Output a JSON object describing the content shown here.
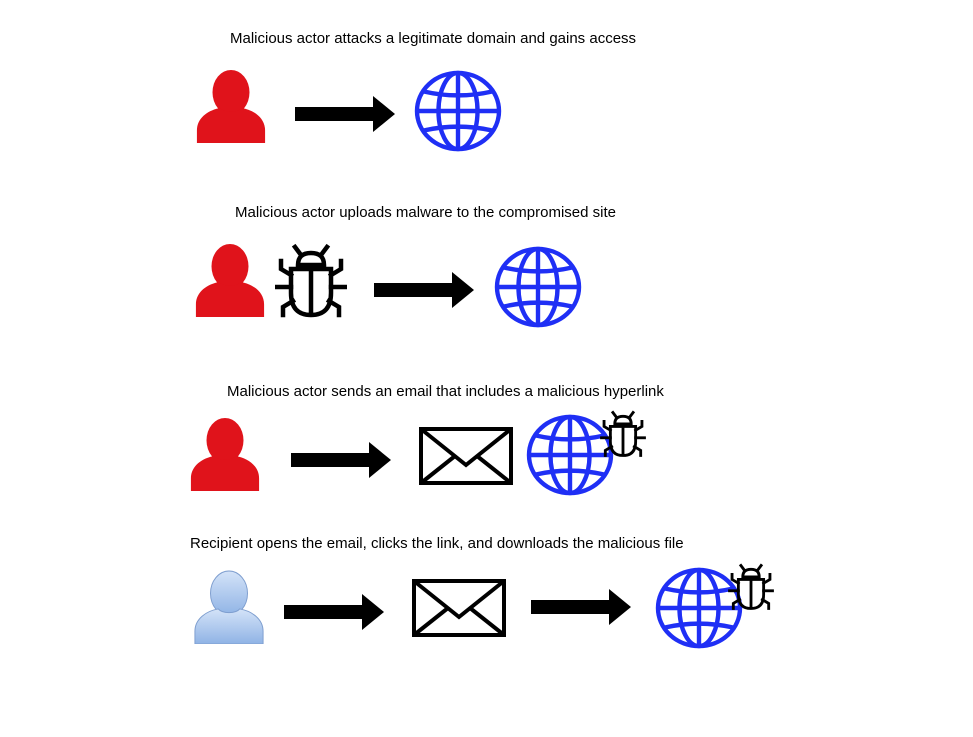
{
  "steps": [
    {
      "caption": "Malicious actor attacks a legitimate domain and gains access",
      "actor_icon": "person-icon",
      "actor_color": "#e0131b",
      "flow": [
        "person-icon",
        "arrow-right-icon",
        "globe-icon"
      ]
    },
    {
      "caption": "Malicious actor uploads malware to the compromised site",
      "actor_icon": "person-icon",
      "actor_color": "#e0131b",
      "flow": [
        "person-icon",
        "bug-icon",
        "arrow-right-icon",
        "globe-icon"
      ]
    },
    {
      "caption": "Malicious actor sends an email that includes a malicious hyperlink",
      "actor_icon": "person-icon",
      "actor_color": "#e0131b",
      "flow": [
        "person-icon",
        "arrow-right-icon",
        "envelope-icon",
        "globe-icon",
        "bug-icon"
      ]
    },
    {
      "caption": "Recipient opens the email, clicks the link, and downloads the malicious file",
      "actor_icon": "person-icon",
      "actor_color": "#a9c6ee",
      "flow": [
        "person-icon",
        "arrow-right-icon",
        "envelope-icon",
        "arrow-right-icon",
        "globe-icon",
        "bug-icon"
      ]
    }
  ],
  "colors": {
    "attacker": "#e0131b",
    "recipient": "#a9c6ee",
    "globe": "#1f2ff5",
    "arrow": "#000000",
    "background": "#ffffff"
  }
}
